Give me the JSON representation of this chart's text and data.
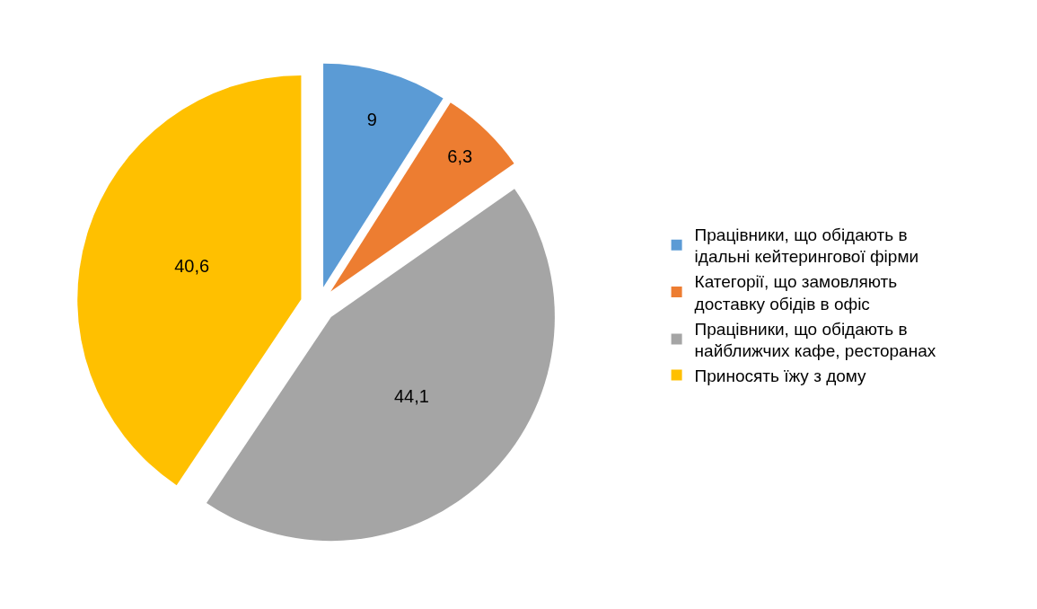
{
  "chart_data": {
    "type": "pie",
    "categories": [
      "Працівники, що обідають в ідальні кейтерингової фірми",
      "Категорії, що замовляють доставку обідів в офіс",
      "Працівники, що обідають в найближчих кафе, ресторанах",
      "Приносять їжу з дому"
    ],
    "values": [
      9,
      6.3,
      44.1,
      40.6
    ],
    "value_labels": [
      "9",
      "6,3",
      "44,1",
      "40,6"
    ],
    "colors": [
      "#5b9bd5",
      "#ed7d31",
      "#a5a5a5",
      "#ffc000"
    ],
    "legend": "right"
  }
}
